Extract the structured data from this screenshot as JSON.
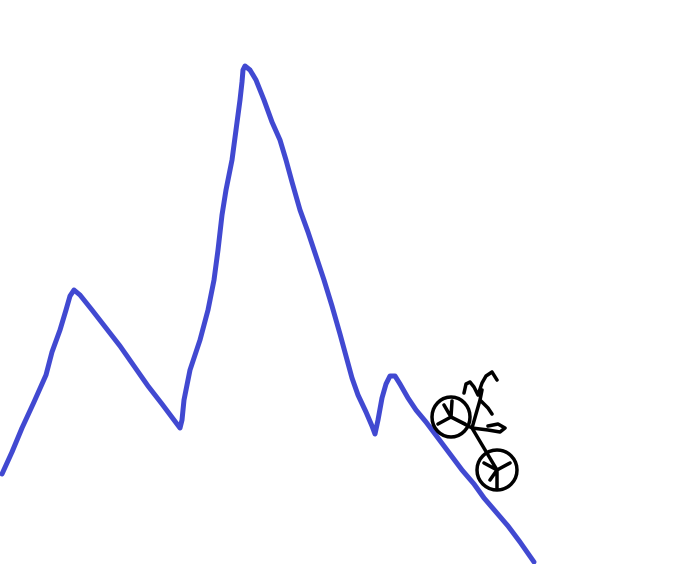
{
  "scene": {
    "background_color": "#ffffff",
    "track": {
      "color": "#4149d1",
      "shape": "hand-drawn mountain line",
      "peaks": 3
    },
    "rider": {
      "type": "bicycle",
      "icon": "bicycle-icon",
      "color": "#000000",
      "state": "riding downhill"
    }
  }
}
